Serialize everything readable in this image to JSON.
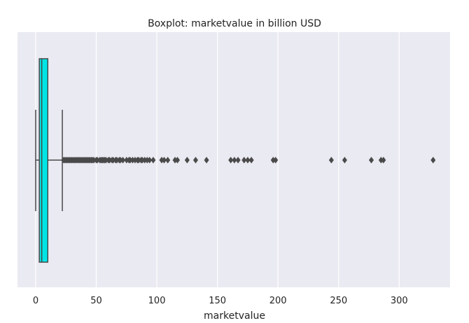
{
  "chart_data": {
    "type": "boxplot",
    "title": "Boxplot: marketvalue in billion USD",
    "xlabel": "marketvalue",
    "ylabel": "",
    "orientation": "horizontal",
    "xlim": [
      -15,
      342
    ],
    "xticks": [
      0,
      50,
      100,
      150,
      200,
      250,
      300
    ],
    "grid": true,
    "box": {
      "whisker_low": 0,
      "q1": 3,
      "median": 5,
      "q3": 10,
      "whisker_high": 22
    },
    "outliers": [
      23,
      24,
      25,
      26,
      27,
      28,
      29,
      30,
      31,
      32,
      33,
      34,
      35,
      36,
      37,
      38,
      39,
      40,
      41,
      42,
      43,
      44,
      45,
      46,
      47,
      48,
      50,
      51,
      53,
      54,
      55,
      56,
      57,
      58,
      60,
      61,
      63,
      64,
      66,
      67,
      69,
      70,
      72,
      75,
      77,
      78,
      80,
      82,
      84,
      85,
      87,
      88,
      90,
      92,
      94,
      97,
      104,
      106,
      109,
      115,
      117,
      125,
      132,
      141,
      161,
      164,
      167,
      172,
      175,
      178,
      196,
      198,
      244,
      255,
      277,
      285,
      287,
      328
    ],
    "colors": {
      "box_fill": "#00e5e5",
      "line": "#4a4a4a",
      "background": "#eaeaf2",
      "grid": "#ffffff"
    }
  }
}
